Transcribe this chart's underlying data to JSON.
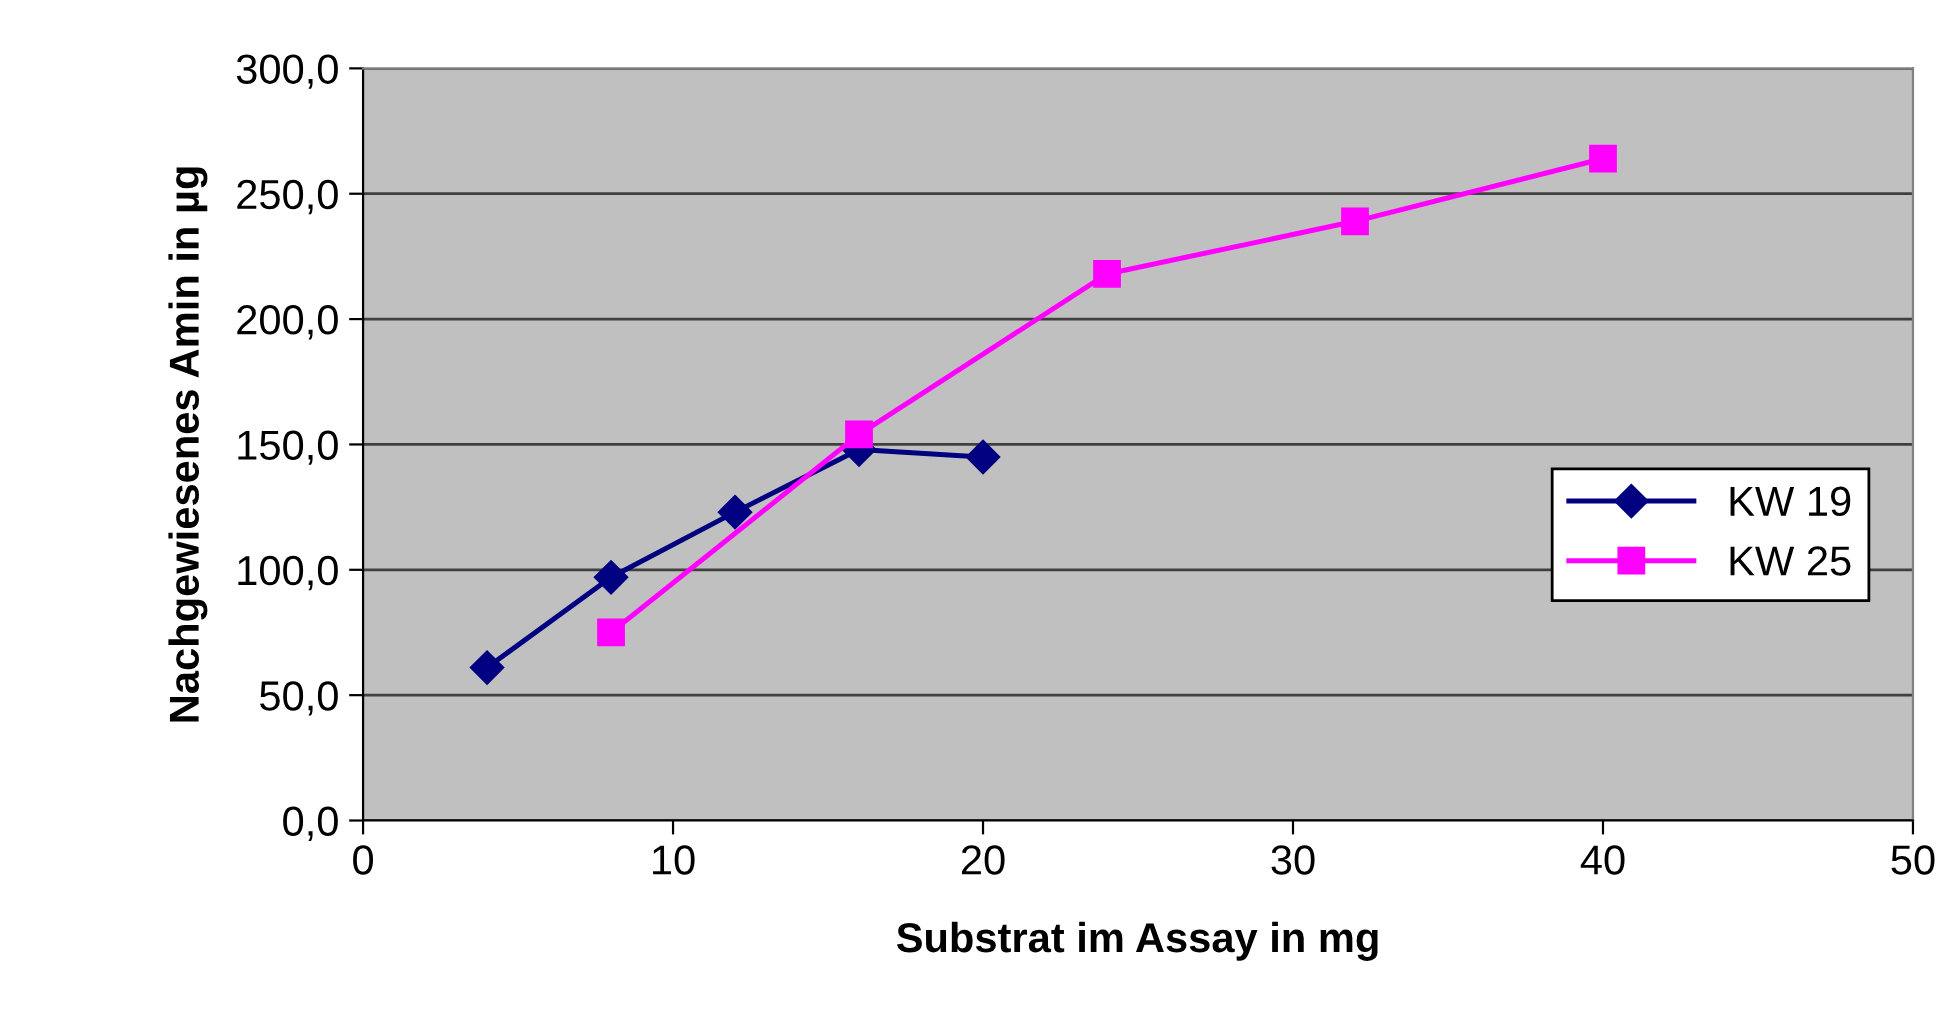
{
  "chart_data": {
    "type": "line",
    "xlabel": "Substrat im Assay in mg",
    "ylabel": "Nachgewiesenes Amin in µg",
    "xlim": [
      0,
      50
    ],
    "xticks": [
      0,
      10,
      20,
      30,
      40,
      50
    ],
    "ylim": [
      0,
      300
    ],
    "yticks": [
      {
        "value": 0,
        "label": "0,0"
      },
      {
        "value": 50,
        "label": "50,0"
      },
      {
        "value": 100,
        "label": "100,0"
      },
      {
        "value": 150,
        "label": "150,0"
      },
      {
        "value": 200,
        "label": "200,0"
      },
      {
        "value": 250,
        "label": "250,0"
      },
      {
        "value": 300,
        "label": "300,0"
      }
    ],
    "grid": "y",
    "legend": "right",
    "series": [
      {
        "name": "KW 19",
        "color": "#000080",
        "marker": "diamond",
        "x": [
          4,
          8,
          12,
          16,
          20
        ],
        "values": [
          61,
          97,
          123,
          148,
          145
        ]
      },
      {
        "name": "KW 25",
        "color": "#ff00ff",
        "marker": "square",
        "x": [
          8,
          16,
          24,
          32,
          40
        ],
        "values": [
          75,
          154,
          218,
          239,
          264
        ]
      }
    ]
  }
}
